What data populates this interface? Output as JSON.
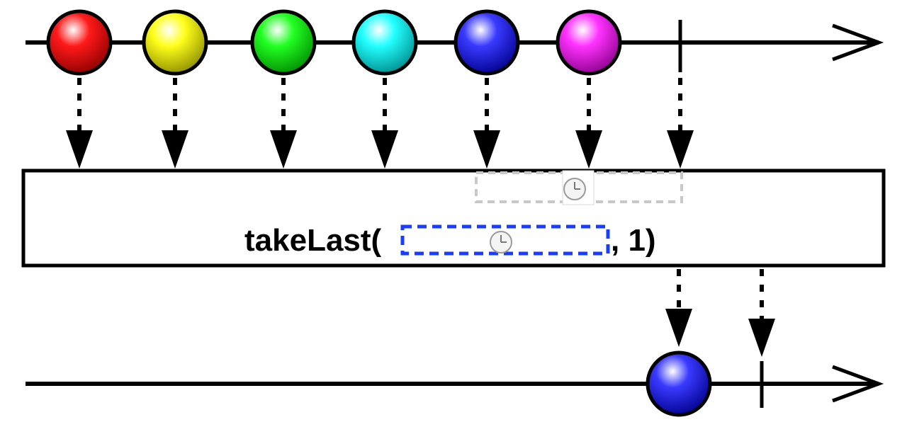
{
  "operator": {
    "name": "takeLast(",
    "tail": ", 1)",
    "icon": "clock-icon",
    "window_border_color": "#1a3cff",
    "window_ghost_color": "#c8c8c8"
  },
  "source": {
    "marbles": [
      {
        "name": "red-marble",
        "color": "#ff1a1a",
        "dark": "#8a0000"
      },
      {
        "name": "yellow-marble",
        "color": "#ffff1a",
        "dark": "#8a8a00"
      },
      {
        "name": "green-marble",
        "color": "#22ff22",
        "dark": "#008a00"
      },
      {
        "name": "cyan-marble",
        "color": "#22ffff",
        "dark": "#008a8a"
      },
      {
        "name": "blue-marble",
        "color": "#3a3aff",
        "dark": "#00008a"
      },
      {
        "name": "magenta-marble",
        "color": "#ff33ff",
        "dark": "#8a008a"
      }
    ],
    "completion": true
  },
  "output": {
    "marbles": [
      {
        "name": "output-blue-marble",
        "color": "#3a3aff",
        "dark": "#00008a"
      }
    ],
    "completion": true
  }
}
